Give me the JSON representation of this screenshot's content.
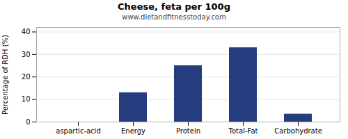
{
  "chart_data": {
    "type": "bar",
    "title": "Cheese, feta per 100g",
    "subtitle": "www.dietandfitnesstoday.com",
    "categories": [
      "aspartic-acid",
      "Energy",
      "Protein",
      "Total-Fat",
      "Carbohydrate"
    ],
    "values": [
      0,
      13,
      25,
      33,
      3.5
    ],
    "color": "#253d7f",
    "ylabel": "Percentage of RDH (%)",
    "ylim": [
      0,
      42
    ],
    "yticks": [
      0,
      10,
      20,
      30,
      40
    ],
    "grid": true
  }
}
